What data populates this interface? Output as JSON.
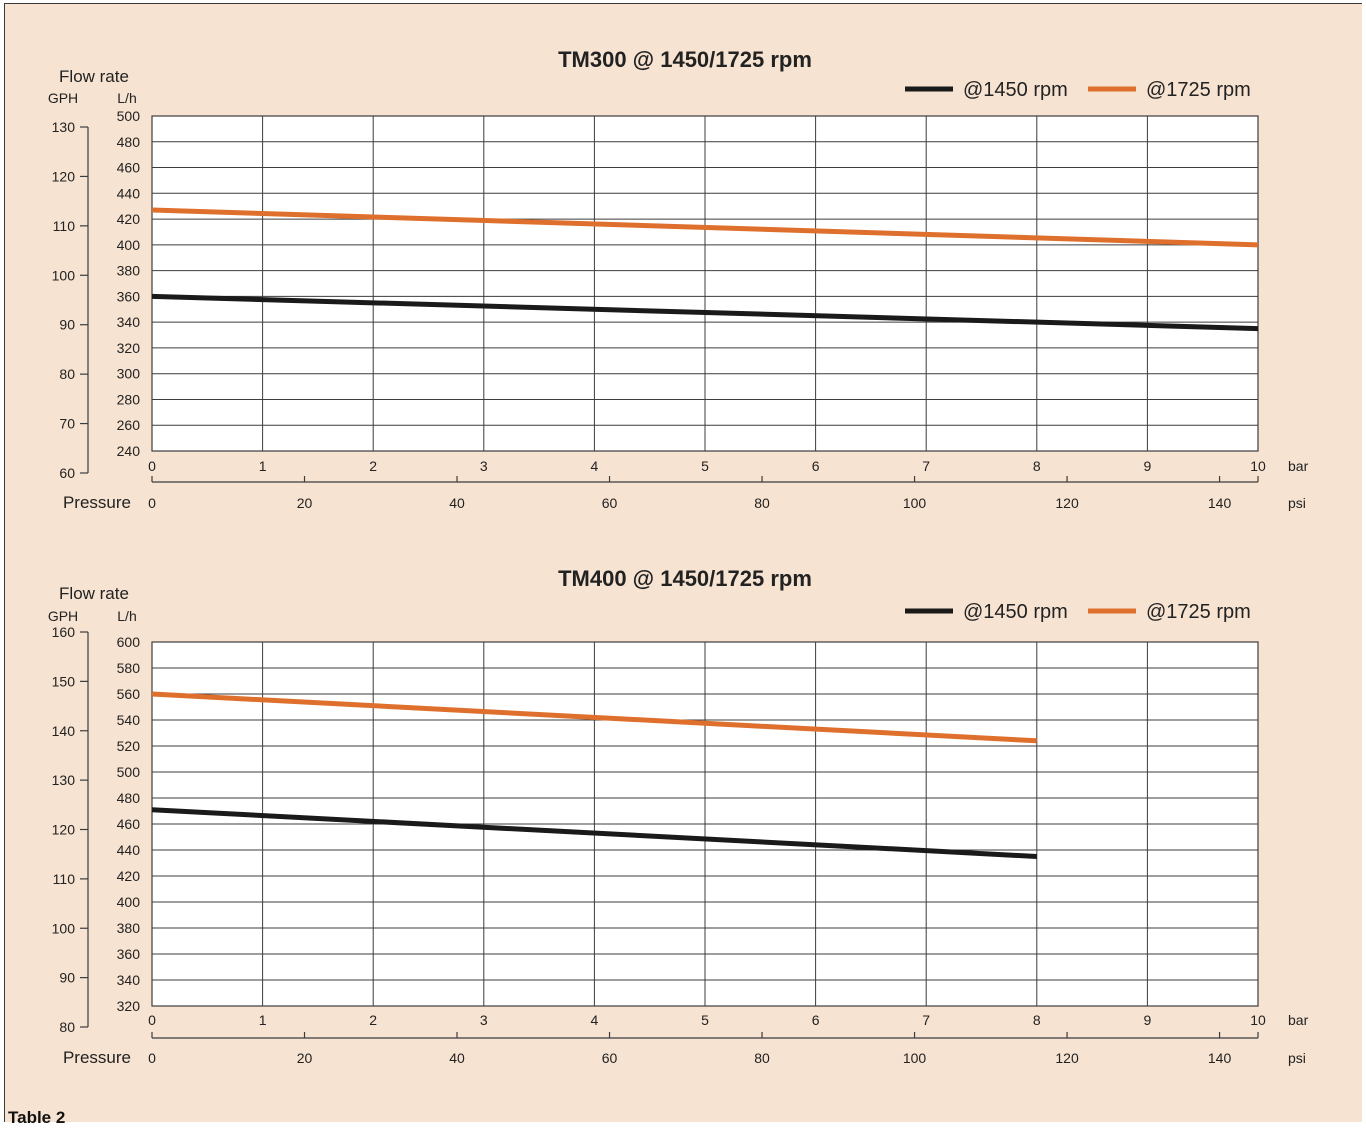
{
  "footer_label": "Table 2",
  "colors": {
    "s1450": "#1a1a1a",
    "s1725": "#df6f2c",
    "grid": "#3c3c3c",
    "background": "#f7e3d1"
  },
  "chart_data": [
    {
      "type": "line",
      "title": "TM300 @ 1450/1725 rpm",
      "ylabel": "Flow rate",
      "ylabel_left_unit": "GPH",
      "ylabel_right_unit": "L/h",
      "xlabel": "Pressure",
      "x_unit": "bar",
      "x2_unit": "psi",
      "x_ticks": [
        "0",
        "1",
        "2",
        "3",
        "4",
        "5",
        "6",
        "7",
        "8",
        "9",
        "10"
      ],
      "x_range": [
        0,
        10
      ],
      "x2_ticks": [
        "0",
        "20",
        "40",
        "60",
        "80",
        "100",
        "120",
        "140"
      ],
      "y_ticks": [
        "240",
        "260",
        "280",
        "300",
        "320",
        "340",
        "360",
        "380",
        "400",
        "420",
        "440",
        "460",
        "480",
        "500"
      ],
      "y_range": [
        240,
        500
      ],
      "y2_ticks": [
        "60",
        "70",
        "80",
        "90",
        "100",
        "110",
        "120",
        "130"
      ],
      "y2_range": [
        60,
        130
      ],
      "grid": true,
      "legend": "top-right",
      "series": [
        {
          "name": "@1450 rpm",
          "color_key": "s1450",
          "x": [
            0,
            10
          ],
          "values": [
            360,
            335
          ]
        },
        {
          "name": "@1725 rpm",
          "color_key": "s1725",
          "x": [
            0,
            10
          ],
          "values": [
            427,
            400
          ]
        }
      ]
    },
    {
      "type": "line",
      "title": "TM400 @ 1450/1725 rpm",
      "ylabel": "Flow rate",
      "ylabel_left_unit": "GPH",
      "ylabel_right_unit": "L/h",
      "xlabel": "Pressure",
      "x_unit": "bar",
      "x2_unit": "psi",
      "x_ticks": [
        "0",
        "1",
        "2",
        "3",
        "4",
        "5",
        "6",
        "7",
        "8",
        "9",
        "10"
      ],
      "x_range": [
        0,
        10
      ],
      "x2_ticks": [
        "0",
        "20",
        "40",
        "60",
        "80",
        "100",
        "120",
        "140"
      ],
      "y_ticks": [
        "320",
        "340",
        "360",
        "380",
        "400",
        "420",
        "440",
        "460",
        "480",
        "500",
        "520",
        "540",
        "560",
        "580",
        "600"
      ],
      "y_range": [
        320,
        600
      ],
      "y2_ticks": [
        "80",
        "90",
        "100",
        "110",
        "120",
        "130",
        "140",
        "150",
        "160"
      ],
      "y2_range": [
        80,
        160
      ],
      "grid": true,
      "legend": "top-right",
      "series": [
        {
          "name": "@1450 rpm",
          "color_key": "s1450",
          "x": [
            0,
            8
          ],
          "values": [
            471,
            435
          ]
        },
        {
          "name": "@1725 rpm",
          "color_key": "s1725",
          "x": [
            0,
            8
          ],
          "values": [
            560,
            524
          ]
        }
      ]
    }
  ]
}
